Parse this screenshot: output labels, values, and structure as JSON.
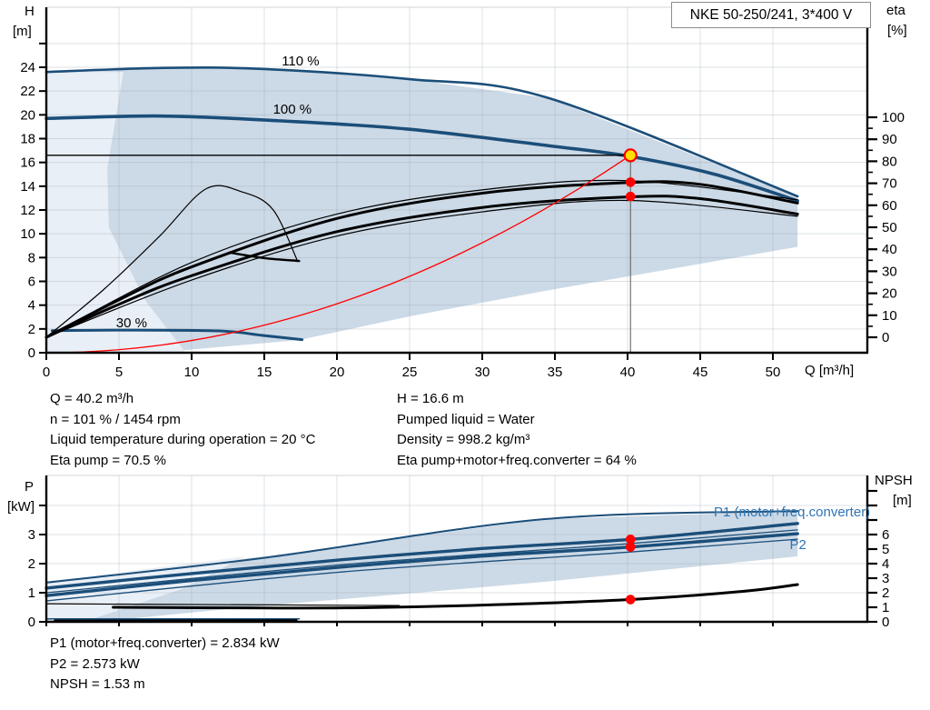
{
  "colors": {
    "curve_blue": "#1b4e79",
    "label_blue": "#2e74b5",
    "fill_mid": "#ccd9e6",
    "fill_light": "#e9eff6",
    "grid": "#9aa4ae",
    "red": "#ff0000",
    "yellow": "#ffe000",
    "black": "#000000",
    "duty_line": "#555555"
  },
  "title_box": {
    "text": "NKE 50-250/241, 3*400 V"
  },
  "axis_labels": {
    "h1": "H",
    "h2": "[m]",
    "eta1": "eta",
    "eta2": "[%]",
    "q": "Q [m³/h]",
    "p1": "P",
    "p2": "[kW]",
    "npsh1": "NPSH",
    "npsh2": "[m]"
  },
  "info_top_left": {
    "l1": "Q = 40.2 m³/h",
    "l2": "n = 101 % / 1454 rpm",
    "l3": "Liquid temperature during operation = 20 °C",
    "l4": "Eta pump = 70.5 %"
  },
  "info_top_right": {
    "l1": "H = 16.6 m",
    "l2": "Pumped liquid = Water",
    "l3": "Density = 998.2 kg/m³",
    "l4": "Eta pump+motor+freq.converter = 64 %"
  },
  "info_bottom": {
    "l1": "P1 (motor+freq.converter) = 2.834 kW",
    "l2": "P2 = 2.573 kW",
    "l3": "NPSH = 1.53 m"
  },
  "operating_point": {
    "q": 40.2,
    "h": 16.6,
    "speed_pct": 101,
    "rpm": 1454,
    "eta_pump": 70.5,
    "eta_total": 64,
    "p1_kw": 2.834,
    "p2_kw": 2.573,
    "npsh_m": 1.53
  },
  "chart_data": [
    {
      "id": "head-chart",
      "type": "line",
      "title": "NKE 50-250/241, 3*400 V",
      "xlabel": "Q [m³/h]",
      "ylabel_left": "H [m]",
      "ylabel_right": "eta [%]",
      "x_range": [
        0,
        56.5
      ],
      "x_ticks": [
        0,
        5,
        10,
        15,
        20,
        25,
        30,
        35,
        40,
        45,
        50
      ],
      "x_tick_labels": true,
      "left_axis": {
        "name": "H",
        "range": [
          0,
          29.05
        ],
        "ticks": [
          0,
          2,
          4,
          6,
          8,
          10,
          12,
          14,
          16,
          18,
          20,
          22,
          24
        ],
        "extra_ticks": [
          26
        ]
      },
      "right_axis": {
        "name": "eta",
        "range": [
          0,
          100
        ],
        "ticks": [
          0,
          10,
          20,
          30,
          40,
          50,
          60,
          70,
          80,
          90,
          100
        ],
        "minor_step": 5
      },
      "grid_h": {
        "axis": "H",
        "values": [
          2,
          4,
          6,
          8,
          10,
          12,
          14,
          16,
          18,
          20,
          22,
          24,
          26
        ]
      },
      "bands": [
        {
          "name": "speed-envelope-band",
          "axis": "H",
          "fill": "fill_mid",
          "points": [
            [
              0,
              23.6
            ],
            [
              8,
              23.95
            ],
            [
              15,
              23.85
            ],
            [
              25,
              23.0
            ],
            [
              34.6,
              21.4
            ],
            [
              51.7,
              13.15
            ],
            [
              51.7,
              8.9
            ],
            [
              34.3,
              5.2
            ],
            [
              25,
              3.06
            ],
            [
              17.4,
              1.07
            ],
            [
              9.6,
              0.23
            ],
            [
              0,
              0
            ]
          ]
        },
        {
          "name": "min-flow-light-band",
          "axis": "H",
          "fill": "fill_light",
          "points": [
            [
              0,
              23.6
            ],
            [
              5.3,
              23.6
            ],
            [
              4.2,
              15.5
            ],
            [
              4.3,
              10.55
            ],
            [
              6.8,
              4.4
            ],
            [
              9.6,
              0
            ],
            [
              0,
              0
            ]
          ]
        }
      ],
      "series": [
        {
          "name": "head-curve-110pct",
          "axis": "H",
          "color": "curve_blue",
          "width": 2.6,
          "points": [
            [
              0,
              23.6
            ],
            [
              8,
              23.95
            ],
            [
              15,
              23.85
            ],
            [
              25,
              23.0
            ],
            [
              34.6,
              21.4
            ],
            [
              51.7,
              13.15
            ]
          ]
        },
        {
          "name": "head-curve-100pct",
          "axis": "H",
          "color": "curve_blue",
          "width": 3.6,
          "points": [
            [
              0,
              19.7
            ],
            [
              8,
              19.9
            ],
            [
              16,
              19.5
            ],
            [
              24.9,
              18.8
            ],
            [
              34.6,
              17.4
            ],
            [
              40.2,
              16.5
            ],
            [
              46,
              15.0
            ],
            [
              51.7,
              12.77
            ]
          ]
        },
        {
          "name": "head-curve-30pct",
          "axis": "H",
          "color": "curve_blue",
          "width": 3.0,
          "points": [
            [
              0.4,
              1.85
            ],
            [
              5,
              1.9
            ],
            [
              11.9,
              1.83
            ],
            [
              14.9,
              1.45
            ],
            [
              17.6,
              1.1
            ]
          ]
        },
        {
          "name": "eta-pump-curve",
          "axis": "eta",
          "color": "black",
          "width": 3.0,
          "points": [
            [
              0,
              0
            ],
            [
              5,
              17
            ],
            [
              10,
              32
            ],
            [
              20,
              54
            ],
            [
              30,
              65.5
            ],
            [
              40,
              70.3
            ],
            [
              45,
              69.5
            ],
            [
              51.7,
              61
            ]
          ]
        },
        {
          "name": "eta-pump-curve-thin",
          "axis": "eta",
          "color": "black",
          "width": 1.2,
          "points": [
            [
              0,
              0
            ],
            [
              10,
              34
            ],
            [
              20,
              56
            ],
            [
              30,
              67
            ],
            [
              40,
              71.2
            ],
            [
              51.7,
              62.5
            ]
          ]
        },
        {
          "name": "eta-total-curve",
          "axis": "eta",
          "color": "black",
          "width": 3.0,
          "points": [
            [
              0,
              0
            ],
            [
              5,
              15
            ],
            [
              10,
              28
            ],
            [
              20,
              48
            ],
            [
              30,
              59
            ],
            [
              40,
              63.8
            ],
            [
              45,
              63
            ],
            [
              51.7,
              56
            ]
          ]
        },
        {
          "name": "eta-total-curve-thin",
          "axis": "eta",
          "color": "black",
          "width": 1.2,
          "points": [
            [
              0,
              0
            ],
            [
              10,
              26
            ],
            [
              20,
              46
            ],
            [
              30,
              57
            ],
            [
              40,
              62.2
            ],
            [
              51.7,
              55
            ]
          ]
        },
        {
          "name": "eta-reduced-speed-curve",
          "axis": "eta",
          "color": "black",
          "width": 1.2,
          "points": [
            [
              0,
              0
            ],
            [
              4,
              22
            ],
            [
              7.8,
              46
            ],
            [
              11,
              67.5
            ],
            [
              13.5,
              66
            ],
            [
              15.6,
              58
            ],
            [
              17.3,
              34.5
            ]
          ]
        },
        {
          "name": "eta-curve-end-segment",
          "axis": "eta",
          "color": "black",
          "width": 2.4,
          "points": [
            [
              12.6,
              38.5
            ],
            [
              15,
              36
            ],
            [
              17.4,
              34.7
            ]
          ]
        },
        {
          "name": "duty-parabola",
          "axis": "H",
          "color": "red",
          "width": 1.3,
          "type": "parabola",
          "points": [
            [
              0,
              0
            ],
            [
              40.2,
              16.6
            ]
          ]
        },
        {
          "name": "duty-head-line",
          "axis": "H",
          "color": "black",
          "width": 1.4,
          "points": [
            [
              0,
              16.6
            ],
            [
              40.2,
              16.6
            ]
          ]
        },
        {
          "name": "duty-vertical-line",
          "axis": "H",
          "color": "duty_line",
          "width": 1.0,
          "points": [
            [
              40.2,
              16.6
            ],
            [
              40.2,
              0
            ]
          ]
        }
      ],
      "markers": [
        {
          "name": "duty-point-marker",
          "axis": "H",
          "q": 40.2,
          "v": 16.6,
          "r": 6.5,
          "fill": "yellow",
          "stroke": "red",
          "stroke_w": 2.2
        },
        {
          "name": "eta-pump-marker",
          "axis": "eta",
          "q": 40.2,
          "v": 70.5,
          "r": 5.3,
          "fill": "red"
        },
        {
          "name": "eta-total-marker",
          "axis": "eta",
          "q": 40.2,
          "v": 64,
          "r": 5.3,
          "fill": "red"
        }
      ],
      "labels": [
        {
          "name": "label-110pct",
          "text": "110 %",
          "axis": "H",
          "q": 16.2,
          "v": 24.15,
          "color": "#000000",
          "anchor": "start"
        },
        {
          "name": "label-100pct",
          "text": "100 %",
          "axis": "H",
          "q": 15.6,
          "v": 20.1,
          "color": "#000000",
          "anchor": "start"
        },
        {
          "name": "label-30pct",
          "text": "30 %",
          "axis": "H",
          "q": 4.8,
          "v": 2.14,
          "color": "#000000",
          "anchor": "start"
        }
      ]
    },
    {
      "id": "power-chart",
      "type": "line",
      "xlabel": "",
      "ylabel_left": "P [kW]",
      "ylabel_right": "NPSH [m]",
      "x_range": [
        0,
        56.5
      ],
      "x_ticks": [
        0,
        5,
        10,
        15,
        20,
        25,
        30,
        35,
        40,
        45,
        50
      ],
      "x_tick_labels": false,
      "left_axis": {
        "name": "P",
        "range": [
          0,
          5.03
        ],
        "ticks": [
          0,
          1,
          2,
          3
        ],
        "extra_ticks": [
          4
        ]
      },
      "right_axis": {
        "name": "NPSH",
        "range": [
          0,
          10.06
        ],
        "ticks": [
          0,
          1,
          2,
          3,
          4,
          5,
          6
        ],
        "extra_ticks": [
          7,
          8,
          9
        ]
      },
      "grid_h": {
        "axis": "P",
        "values": [
          1,
          2,
          3,
          4
        ]
      },
      "bands": [
        {
          "name": "power-envelope-band",
          "axis": "P",
          "fill": "fill_mid",
          "points": [
            [
              0,
              1.375
            ],
            [
              15,
              2.25
            ],
            [
              34.3,
              3.53
            ],
            [
              51.7,
              3.81
            ],
            [
              51.7,
              2.25
            ],
            [
              34.3,
              1.375
            ],
            [
              21.8,
              0.84
            ],
            [
              13.7,
              0.5
            ],
            [
              6,
              0.12
            ],
            [
              0,
              0
            ]
          ]
        },
        {
          "name": "power-light-band",
          "axis": "P",
          "fill": "fill_light",
          "points": [
            [
              0,
              1.375
            ],
            [
              13.7,
              2.25
            ],
            [
              9.3,
              1.125
            ],
            [
              5.6,
              0.5
            ],
            [
              2.75,
              0.03
            ],
            [
              0,
              0
            ]
          ]
        }
      ],
      "series": [
        {
          "name": "power-band-top-edge",
          "axis": "P",
          "color": "curve_blue",
          "width": 2.0,
          "points": [
            [
              0,
              1.35
            ],
            [
              15,
              2.2
            ],
            [
              34.3,
              3.53
            ],
            [
              51.7,
              3.81
            ]
          ]
        },
        {
          "name": "p1-curve",
          "axis": "P",
          "color": "curve_blue",
          "width": 3.4,
          "points": [
            [
              0,
              1.16
            ],
            [
              10,
              1.66
            ],
            [
              20,
              2.12
            ],
            [
              30,
              2.52
            ],
            [
              40.2,
              2.834
            ],
            [
              51.7,
              3.38
            ]
          ]
        },
        {
          "name": "p-mid-thin-curve",
          "axis": "P",
          "color": "curve_blue",
          "width": 1.3,
          "points": [
            [
              0,
              1.0
            ],
            [
              20,
              1.95
            ],
            [
              40.2,
              2.69
            ],
            [
              51.7,
              3.16
            ]
          ]
        },
        {
          "name": "p2-curve",
          "axis": "P",
          "color": "curve_blue",
          "width": 3.4,
          "points": [
            [
              0,
              0.9
            ],
            [
              10,
              1.42
            ],
            [
              20,
              1.87
            ],
            [
              30,
              2.26
            ],
            [
              40.2,
              2.573
            ],
            [
              51.7,
              3.03
            ]
          ]
        },
        {
          "name": "p-low-thin-curve",
          "axis": "P",
          "color": "curve_blue",
          "width": 1.3,
          "points": [
            [
              0,
              0.72
            ],
            [
              20,
              1.7
            ],
            [
              40.2,
              2.4
            ],
            [
              51.7,
              2.84
            ]
          ]
        },
        {
          "name": "p2-30pct-curve",
          "axis": "P",
          "color": "curve_blue",
          "width": 1.5,
          "points": [
            [
              0,
              0.1
            ],
            [
              17.4,
              0.1
            ]
          ]
        },
        {
          "name": "p-thin-black-line",
          "axis": "P",
          "color": "black",
          "width": 1.2,
          "points": [
            [
              0,
              0.62
            ],
            [
              24.3,
              0.56
            ]
          ]
        },
        {
          "name": "p-30pct-black-curve",
          "axis": "P",
          "color": "black",
          "width": 3.0,
          "points": [
            [
              0.6,
              0.03
            ],
            [
              17.2,
              0.04
            ]
          ]
        },
        {
          "name": "npsh-curve",
          "axis": "NPSH",
          "color": "black",
          "width": 3.0,
          "points": [
            [
              4.6,
              1.0
            ],
            [
              15,
              0.95
            ],
            [
              21.8,
              0.97
            ],
            [
              30,
              1.15
            ],
            [
              40.2,
              1.53
            ],
            [
              48,
              2.1
            ],
            [
              51.7,
              2.56
            ]
          ]
        }
      ],
      "markers": [
        {
          "name": "p1-marker",
          "axis": "P",
          "q": 40.2,
          "v": 2.834,
          "r": 5.3,
          "fill": "red"
        },
        {
          "name": "p2-marker",
          "axis": "P",
          "q": 40.2,
          "v": 2.573,
          "r": 5.3,
          "fill": "red"
        },
        {
          "name": "npsh-marker",
          "axis": "NPSH",
          "q": 40.2,
          "v": 1.53,
          "r": 5.3,
          "fill": "red"
        }
      ],
      "labels": [
        {
          "name": "label-p1",
          "text": "P1 (motor+freq.converter)",
          "axis": "P",
          "q": 56.7,
          "v": 3.63,
          "color": "#2e74b5",
          "anchor": "end"
        },
        {
          "name": "label-p2",
          "text": "P2",
          "axis": "P",
          "q": 52.3,
          "v": 2.5,
          "color": "#2e74b5",
          "anchor": "end"
        }
      ]
    }
  ]
}
